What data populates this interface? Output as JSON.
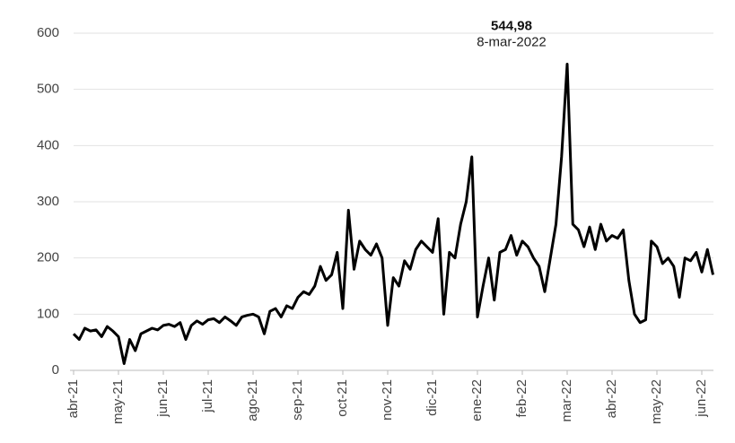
{
  "chart_data": {
    "type": "line",
    "categories": [
      "abr-21",
      null,
      null,
      null,
      null,
      null,
      null,
      null,
      "may-21",
      null,
      null,
      null,
      null,
      null,
      null,
      null,
      "jun-21",
      null,
      null,
      null,
      null,
      null,
      null,
      null,
      "jul-21",
      null,
      null,
      null,
      null,
      null,
      null,
      null,
      "ago-21",
      null,
      null,
      null,
      null,
      null,
      null,
      null,
      "sep-21",
      null,
      null,
      null,
      null,
      null,
      null,
      null,
      "oct-21",
      null,
      null,
      null,
      null,
      null,
      null,
      null,
      "nov-21",
      null,
      null,
      null,
      null,
      null,
      null,
      null,
      "dic-21",
      null,
      null,
      null,
      null,
      null,
      null,
      null,
      "ene-22",
      null,
      null,
      null,
      null,
      null,
      null,
      null,
      "feb-22",
      null,
      null,
      null,
      null,
      null,
      null,
      null,
      "mar-22",
      null,
      null,
      null,
      null,
      null,
      null,
      null,
      "abr-22",
      null,
      null,
      null,
      null,
      null,
      null,
      null,
      "may-22",
      null,
      null,
      null,
      null,
      null,
      null,
      null,
      "jun-22",
      null,
      null
    ],
    "series": [
      {
        "name": null,
        "color": "#000000",
        "values": [
          65,
          55,
          75,
          70,
          72,
          60,
          78,
          70,
          60,
          12,
          55,
          35,
          65,
          70,
          75,
          72,
          80,
          82,
          78,
          85,
          55,
          80,
          88,
          82,
          90,
          92,
          85,
          95,
          88,
          80,
          95,
          98,
          100,
          95,
          65,
          105,
          110,
          95,
          115,
          110,
          130,
          140,
          135,
          150,
          185,
          160,
          170,
          210,
          110,
          285,
          180,
          230,
          215,
          205,
          225,
          200,
          80,
          165,
          150,
          195,
          180,
          215,
          230,
          220,
          210,
          270,
          100,
          210,
          200,
          260,
          300,
          380,
          95,
          150,
          200,
          125,
          210,
          215,
          240,
          205,
          230,
          220,
          200,
          185,
          140,
          200,
          260,
          380,
          544.98,
          260,
          250,
          220,
          255,
          215,
          260,
          230,
          240,
          235,
          250,
          160,
          100,
          85,
          90,
          230,
          220,
          190,
          200,
          185,
          130,
          200,
          195,
          210,
          175,
          215,
          170
        ],
        "value_labels": [
          null,
          null,
          null,
          null,
          null,
          null,
          null,
          null,
          null,
          null,
          null,
          null,
          null,
          null,
          null,
          null,
          null,
          null,
          null,
          null,
          null,
          null,
          null,
          null,
          null,
          null,
          null,
          null,
          null,
          null,
          null,
          null,
          null,
          null,
          null,
          null,
          null,
          null,
          null,
          null,
          null,
          null,
          null,
          null,
          null,
          null,
          null,
          null,
          null,
          null,
          null,
          null,
          null,
          null,
          null,
          null,
          null,
          null,
          null,
          null,
          null,
          null,
          null,
          null,
          null,
          null,
          null,
          null,
          null,
          null,
          null,
          null,
          null,
          null,
          null,
          null,
          null,
          null,
          null,
          null,
          null,
          null,
          null,
          null,
          null,
          null,
          null,
          null,
          "544,98",
          null,
          null,
          null,
          null,
          null,
          null,
          null,
          null,
          null,
          null,
          null,
          null,
          null,
          null,
          null,
          null,
          null,
          null,
          null,
          null,
          null,
          null,
          null,
          null,
          null,
          null
        ]
      }
    ],
    "annotation": "8-mar-2022",
    "ylim": [
      0,
      600
    ],
    "yticks": [
      0,
      100,
      200,
      300,
      400,
      500,
      600
    ],
    "grid": true
  }
}
